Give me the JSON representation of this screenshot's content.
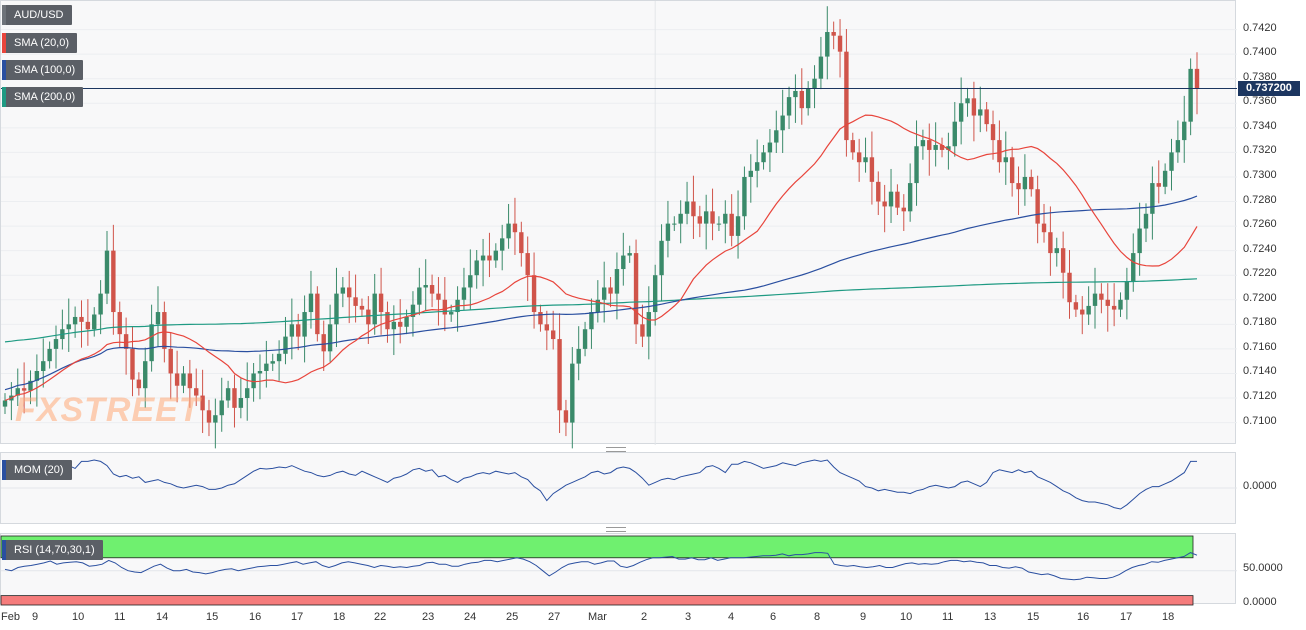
{
  "legend": {
    "symbol": "AUD/USD",
    "sma20": "SMA (20,0)",
    "sma100": "SMA (100,0)",
    "sma200": "SMA (200,0)",
    "mom": "MOM (20)",
    "rsi": "RSI (14,70,30,1)"
  },
  "current_price_label": "0.737200",
  "watermark": "FXSTREET",
  "colors": {
    "up": "#3a8a6a",
    "down": "#d0544a",
    "sma20": "#e8453c",
    "sma100": "#2a4fa0",
    "sma200": "#1f9a83",
    "mom": "#2a4fa0",
    "rsi_over": "#6ff06f",
    "rsi_under": "#f57c7c"
  },
  "chart_data": [
    {
      "type": "candlestick",
      "title": "AUD/USD",
      "x_labels": [
        "Feb",
        "9",
        "10",
        "11",
        "14",
        "15",
        "16",
        "17",
        "18",
        "22",
        "23",
        "24",
        "25",
        "27",
        "Mar",
        "2",
        "3",
        "4",
        "6",
        "8",
        "9",
        "10",
        "11",
        "13",
        "15",
        "16",
        "17",
        "18"
      ],
      "ylim": [
        0.7085,
        0.744
      ],
      "y_ticks": [
        "0.7100",
        "0.7120",
        "0.7140",
        "0.7160",
        "0.7180",
        "0.7200",
        "0.7220",
        "0.7240",
        "0.7260",
        "0.7280",
        "0.7300",
        "0.7320",
        "0.7340",
        "0.7360",
        "0.7380",
        "0.7400",
        "0.7420"
      ],
      "current_price": 0.7372,
      "ohlc_close": [
        0.7118,
        0.7122,
        0.7128,
        0.7126,
        0.7134,
        0.7142,
        0.715,
        0.716,
        0.7168,
        0.7176,
        0.718,
        0.7186,
        0.7182,
        0.7176,
        0.7188,
        0.7205,
        0.724,
        0.719,
        0.7172,
        0.716,
        0.7135,
        0.7128,
        0.715,
        0.718,
        0.719,
        0.716,
        0.714,
        0.713,
        0.714,
        0.7128,
        0.7122,
        0.711,
        0.71,
        0.7106,
        0.7118,
        0.7128,
        0.7112,
        0.712,
        0.7128,
        0.714,
        0.7142,
        0.7148,
        0.715,
        0.7156,
        0.717,
        0.718,
        0.717,
        0.719,
        0.7205,
        0.7172,
        0.7158,
        0.718,
        0.7205,
        0.721,
        0.7202,
        0.7195,
        0.7192,
        0.718,
        0.7205,
        0.719,
        0.7176,
        0.7182,
        0.7178,
        0.7186,
        0.7196,
        0.721,
        0.7212,
        0.7205,
        0.72,
        0.7188,
        0.719,
        0.72,
        0.721,
        0.722,
        0.7232,
        0.7236,
        0.7232,
        0.724,
        0.725,
        0.7262,
        0.7255,
        0.7238,
        0.722,
        0.719,
        0.718,
        0.7175,
        0.7168,
        0.711,
        0.71,
        0.7148,
        0.716,
        0.7176,
        0.719,
        0.72,
        0.721,
        0.7205,
        0.7225,
        0.7236,
        0.7238,
        0.718,
        0.717,
        0.719,
        0.722,
        0.7248,
        0.7262,
        0.7262,
        0.727,
        0.728,
        0.7268,
        0.7262,
        0.7272,
        0.7262,
        0.7262,
        0.727,
        0.7252,
        0.7268,
        0.73,
        0.7305,
        0.7312,
        0.732,
        0.7328,
        0.7338,
        0.735,
        0.7365,
        0.737,
        0.7356,
        0.7372,
        0.738,
        0.7398,
        0.7418,
        0.7415,
        0.7402,
        0.733,
        0.732,
        0.7312,
        0.7316,
        0.7296,
        0.728,
        0.7276,
        0.7288,
        0.7275,
        0.7272,
        0.7295,
        0.7325,
        0.733,
        0.7322,
        0.7326,
        0.7322,
        0.7325,
        0.7345,
        0.736,
        0.7364,
        0.735,
        0.7355,
        0.7343,
        0.733,
        0.7312,
        0.7316,
        0.7295,
        0.729,
        0.73,
        0.729,
        0.7262,
        0.7255,
        0.7238,
        0.7242,
        0.7222,
        0.7198,
        0.7192,
        0.7188,
        0.7195,
        0.7205,
        0.72,
        0.7195,
        0.7192,
        0.72,
        0.7215,
        0.7238,
        0.7258,
        0.727,
        0.7295,
        0.7292,
        0.7305,
        0.732,
        0.733,
        0.7345,
        0.7388,
        0.7372
      ]
    },
    {
      "type": "line",
      "title": "MOM (20)",
      "y_ticks": [
        "0.0000"
      ],
      "note": "momentum oscillator, normalized to pane",
      "values": [
        0.4,
        0.45,
        0.5,
        0.35,
        0.55,
        0.5,
        0.6,
        0.7,
        0.72,
        0.85,
        0.8,
        0.7,
        0.95,
        0.95,
        1.0,
        0.95,
        0.8,
        0.5,
        0.4,
        0.45,
        0.35,
        0.4,
        0.2,
        0.25,
        0.3,
        0.2,
        0.15,
        0.05,
        0.0,
        0.05,
        0.1,
        0.05,
        -0.05,
        -0.05,
        0.0,
        0.1,
        0.15,
        0.3,
        0.45,
        0.6,
        0.7,
        0.68,
        0.7,
        0.75,
        0.72,
        0.8,
        0.7,
        0.6,
        0.55,
        0.45,
        0.4,
        0.45,
        0.55,
        0.6,
        0.5,
        0.45,
        0.6,
        0.5,
        0.4,
        0.3,
        0.2,
        0.35,
        0.4,
        0.5,
        0.65,
        0.7,
        0.6,
        0.65,
        0.4,
        0.45,
        0.3,
        0.2,
        0.35,
        0.4,
        0.5,
        0.55,
        0.5,
        0.6,
        0.55,
        0.5,
        0.55,
        0.4,
        0.3,
        0.05,
        -0.1,
        -0.45,
        -0.2,
        -0.05,
        0.1,
        0.2,
        0.3,
        0.4,
        0.55,
        0.6,
        0.5,
        0.55,
        0.7,
        0.75,
        0.7,
        0.55,
        0.35,
        0.1,
        0.2,
        0.3,
        0.35,
        0.3,
        0.4,
        0.45,
        0.5,
        0.55,
        0.75,
        0.8,
        0.7,
        0.55,
        0.85,
        0.85,
        0.95,
        0.9,
        0.8,
        0.7,
        0.75,
        0.8,
        0.9,
        0.85,
        0.8,
        0.9,
        0.95,
        1.0,
        0.95,
        1.0,
        0.75,
        0.55,
        0.45,
        0.35,
        0.25,
        0.05,
        0.0,
        -0.1,
        -0.05,
        -0.1,
        -0.15,
        -0.15,
        -0.2,
        -0.1,
        -0.05,
        0.05,
        0.1,
        0.05,
        0.0,
        0.05,
        0.2,
        0.25,
        0.15,
        0.05,
        0.2,
        0.55,
        0.65,
        0.6,
        0.55,
        0.65,
        0.55,
        0.6,
        0.4,
        0.3,
        0.2,
        0.05,
        -0.1,
        -0.2,
        -0.35,
        -0.45,
        -0.5,
        -0.5,
        -0.55,
        -0.6,
        -0.7,
        -0.75,
        -0.6,
        -0.4,
        -0.2,
        -0.05,
        0.05,
        0.05,
        0.15,
        0.25,
        0.4,
        0.55,
        0.95,
        0.95
      ]
    },
    {
      "type": "line",
      "title": "RSI (14,70,30,1)",
      "y_ticks": [
        "50.0000",
        "0.0000"
      ],
      "levels": {
        "overbought": 70,
        "oversold": 30
      },
      "values": [
        52,
        50,
        55,
        57,
        58,
        60,
        62,
        65,
        60,
        62,
        63,
        64,
        62,
        57,
        58,
        60,
        66,
        62,
        55,
        50,
        48,
        47,
        52,
        57,
        60,
        54,
        50,
        50,
        52,
        48,
        47,
        45,
        47,
        50,
        52,
        53,
        50,
        52,
        54,
        56,
        57,
        58,
        58,
        60,
        62,
        64,
        60,
        62,
        64,
        58,
        55,
        58,
        62,
        64,
        62,
        60,
        58,
        55,
        58,
        57,
        55,
        56,
        55,
        57,
        58,
        62,
        63,
        60,
        60,
        57,
        57,
        60,
        62,
        63,
        66,
        66,
        64,
        66,
        68,
        70,
        68,
        64,
        58,
        50,
        42,
        48,
        55,
        60,
        62,
        64,
        64,
        60,
        62,
        65,
        65,
        57,
        55,
        58,
        63,
        67,
        70,
        70,
        71,
        72,
        68,
        68,
        70,
        67,
        67,
        70,
        66,
        68,
        70,
        70,
        70,
        71,
        72,
        73,
        73,
        74,
        76,
        73,
        75,
        75,
        76,
        78,
        78,
        77,
        60,
        58,
        57,
        58,
        56,
        55,
        56,
        58,
        55,
        55,
        58,
        61,
        62,
        60,
        61,
        60,
        61,
        64,
        66,
        66,
        64,
        65,
        63,
        62,
        58,
        58,
        55,
        54,
        56,
        54,
        48,
        46,
        44,
        45,
        42,
        38,
        37,
        36,
        37,
        40,
        39,
        38,
        38,
        40,
        44,
        50,
        55,
        58,
        60,
        64,
        63,
        66,
        68,
        70,
        72,
        78,
        74
      ]
    }
  ]
}
